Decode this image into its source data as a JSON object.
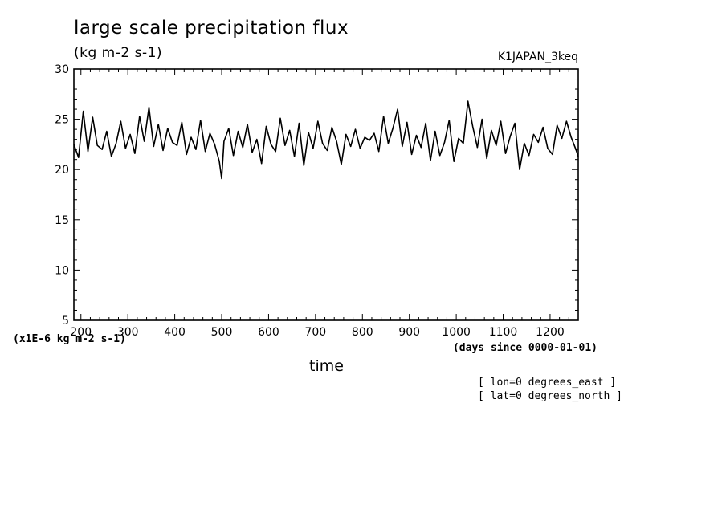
{
  "chart_data": {
    "type": "line",
    "title": "large scale precipitation flux",
    "subtitle": "(kg m-2 s-1)",
    "run_label": "K1JAPAN_3keq",
    "xlabel": "time",
    "x_units": "(days since 0000-01-01)",
    "y_scale_label": "(x1E-6 kg m-2 s-1)",
    "xlim": [
      185,
      1260
    ],
    "ylim": [
      5,
      30
    ],
    "x_ticks": [
      200,
      300,
      400,
      500,
      600,
      700,
      800,
      900,
      1000,
      1100,
      1200
    ],
    "y_ticks": [
      5,
      10,
      15,
      20,
      25,
      30
    ],
    "grid": false,
    "notes": [
      "[ lon=0 degrees_east ]",
      "[ lat=0 degrees_north ]"
    ],
    "series": [
      {
        "color": "#000000",
        "x": [
          185,
          195,
          205,
          215,
          225,
          235,
          245,
          255,
          265,
          275,
          285,
          295,
          305,
          315,
          325,
          335,
          345,
          355,
          365,
          375,
          385,
          395,
          405,
          415,
          425,
          435,
          445,
          455,
          465,
          475,
          485,
          495,
          500,
          505,
          515,
          525,
          535,
          545,
          555,
          565,
          575,
          585,
          595,
          605,
          615,
          625,
          635,
          645,
          655,
          665,
          675,
          685,
          695,
          705,
          715,
          725,
          735,
          745,
          755,
          765,
          775,
          785,
          795,
          805,
          815,
          825,
          835,
          845,
          855,
          865,
          875,
          885,
          895,
          905,
          915,
          925,
          935,
          945,
          955,
          965,
          975,
          985,
          995,
          1005,
          1015,
          1025,
          1035,
          1045,
          1055,
          1065,
          1075,
          1085,
          1095,
          1105,
          1115,
          1125,
          1135,
          1145,
          1155,
          1165,
          1175,
          1185,
          1195,
          1205,
          1215,
          1225,
          1235,
          1245,
          1255,
          1260
        ],
        "y": [
          22.5,
          21.2,
          25.8,
          21.8,
          25.2,
          22.4,
          22.0,
          23.8,
          21.3,
          22.6,
          24.8,
          22.1,
          23.5,
          21.6,
          25.3,
          22.8,
          26.2,
          22.3,
          24.5,
          21.9,
          24.1,
          22.7,
          22.4,
          24.7,
          21.5,
          23.2,
          22.0,
          24.9,
          21.8,
          23.6,
          22.5,
          20.8,
          19.1,
          22.8,
          24.1,
          21.4,
          23.8,
          22.2,
          24.5,
          21.7,
          23.0,
          20.6,
          24.3,
          22.5,
          21.8,
          25.1,
          22.4,
          23.9,
          21.3,
          24.6,
          20.4,
          23.7,
          22.1,
          24.8,
          22.6,
          21.9,
          24.2,
          22.8,
          20.5,
          23.5,
          22.3,
          24.0,
          22.1,
          23.2,
          22.9,
          23.6,
          21.8,
          25.3,
          22.6,
          24.1,
          26.0,
          22.3,
          24.7,
          21.5,
          23.4,
          22.2,
          24.6,
          20.9,
          23.8,
          21.4,
          22.7,
          24.9,
          20.8,
          23.1,
          22.6,
          26.8,
          24.3,
          22.2,
          25.0,
          21.1,
          23.9,
          22.4,
          24.8,
          21.6,
          23.3,
          24.6,
          20.0,
          22.6,
          21.4,
          23.5,
          22.7,
          24.2,
          22.1,
          21.5,
          24.4,
          23.1,
          24.8,
          23.2,
          22.0,
          21.3
        ]
      }
    ]
  }
}
